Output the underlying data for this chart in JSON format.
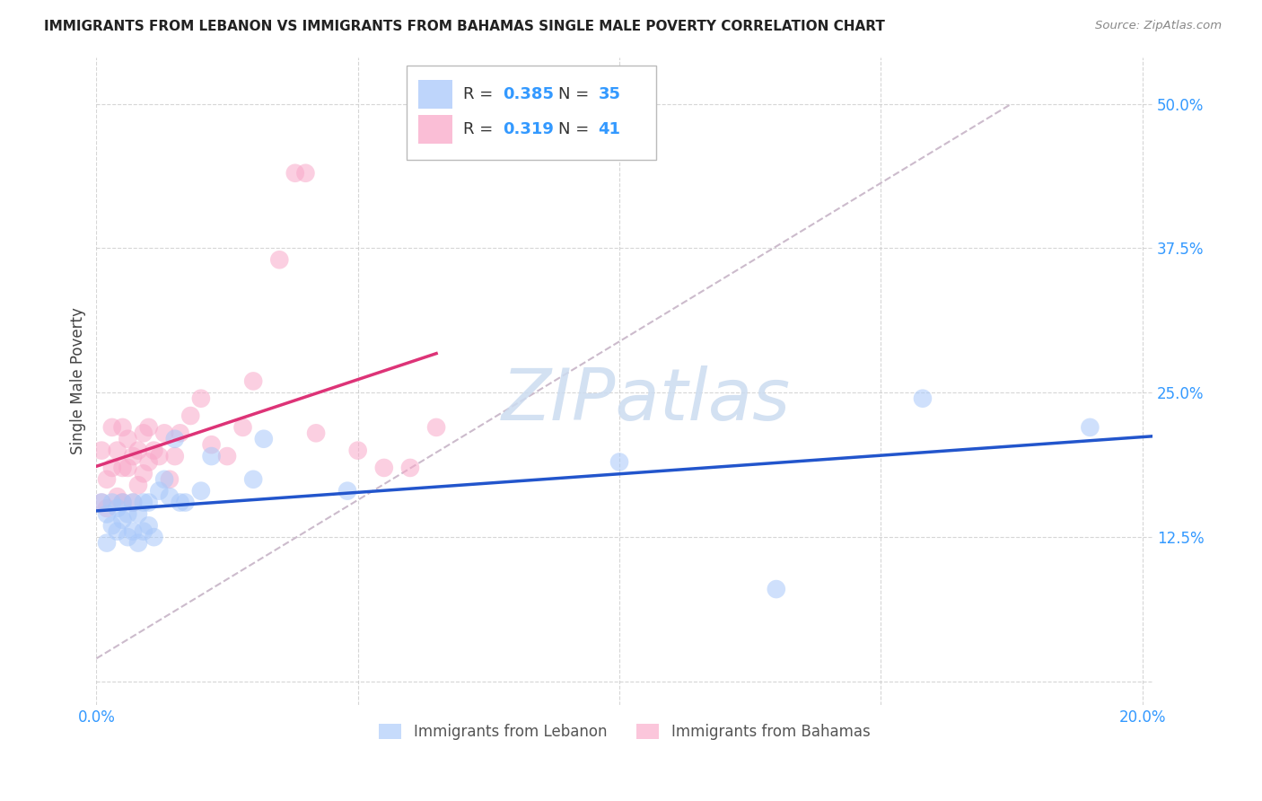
{
  "title": "IMMIGRANTS FROM LEBANON VS IMMIGRANTS FROM BAHAMAS SINGLE MALE POVERTY CORRELATION CHART",
  "source": "Source: ZipAtlas.com",
  "ylabel": "Single Male Poverty",
  "legend_blue_r": "0.385",
  "legend_blue_n": "35",
  "legend_pink_r": "0.319",
  "legend_pink_n": "41",
  "blue_color": "#a8c8fa",
  "pink_color": "#f9a8c9",
  "blue_line_color": "#2255cc",
  "pink_line_color": "#dd3377",
  "diagonal_color": "#ccbbcc",
  "watermark_color": "#ccdcf0",
  "blue_scatter_x": [
    0.001,
    0.002,
    0.002,
    0.003,
    0.003,
    0.004,
    0.004,
    0.005,
    0.005,
    0.006,
    0.006,
    0.007,
    0.007,
    0.008,
    0.008,
    0.009,
    0.009,
    0.01,
    0.01,
    0.011,
    0.012,
    0.013,
    0.014,
    0.015,
    0.016,
    0.017,
    0.02,
    0.022,
    0.03,
    0.032,
    0.048,
    0.1,
    0.13,
    0.158,
    0.19
  ],
  "blue_scatter_y": [
    0.155,
    0.12,
    0.145,
    0.135,
    0.155,
    0.13,
    0.15,
    0.14,
    0.155,
    0.125,
    0.145,
    0.13,
    0.155,
    0.12,
    0.145,
    0.13,
    0.155,
    0.135,
    0.155,
    0.125,
    0.165,
    0.175,
    0.16,
    0.21,
    0.155,
    0.155,
    0.165,
    0.195,
    0.175,
    0.21,
    0.165,
    0.19,
    0.08,
    0.245,
    0.22
  ],
  "pink_scatter_x": [
    0.001,
    0.001,
    0.002,
    0.002,
    0.003,
    0.003,
    0.004,
    0.004,
    0.005,
    0.005,
    0.005,
    0.006,
    0.006,
    0.007,
    0.007,
    0.008,
    0.008,
    0.009,
    0.009,
    0.01,
    0.01,
    0.011,
    0.012,
    0.013,
    0.014,
    0.015,
    0.016,
    0.018,
    0.02,
    0.022,
    0.025,
    0.028,
    0.03,
    0.035,
    0.038,
    0.04,
    0.042,
    0.05,
    0.055,
    0.06,
    0.065
  ],
  "pink_scatter_y": [
    0.155,
    0.2,
    0.15,
    0.175,
    0.185,
    0.22,
    0.16,
    0.2,
    0.155,
    0.185,
    0.22,
    0.185,
    0.21,
    0.155,
    0.195,
    0.17,
    0.2,
    0.18,
    0.215,
    0.19,
    0.22,
    0.2,
    0.195,
    0.215,
    0.175,
    0.195,
    0.215,
    0.23,
    0.245,
    0.205,
    0.195,
    0.22,
    0.26,
    0.365,
    0.44,
    0.44,
    0.215,
    0.2,
    0.185,
    0.185,
    0.22
  ],
  "xlim": [
    0.0,
    0.202
  ],
  "ylim": [
    -0.02,
    0.54
  ],
  "x_ticks": [
    0.0,
    0.05,
    0.1,
    0.15,
    0.2
  ],
  "y_ticks": [
    0.0,
    0.125,
    0.25,
    0.375,
    0.5
  ],
  "x_tick_labels": [
    "0.0%",
    "",
    "",
    "",
    "20.0%"
  ],
  "y_tick_labels": [
    "",
    "12.5%",
    "25.0%",
    "37.5%",
    "50.0%"
  ]
}
